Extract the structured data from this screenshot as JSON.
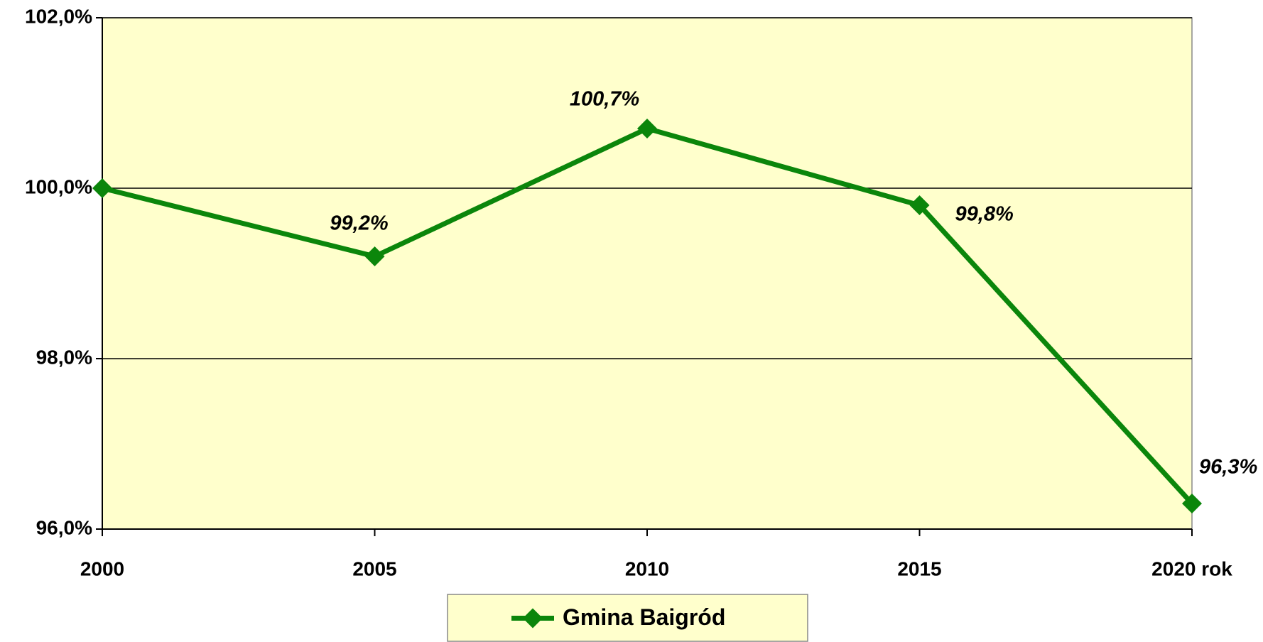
{
  "chart_data": {
    "type": "line",
    "categories": [
      "2000",
      "2005",
      "2010",
      "2015",
      "2020 rok"
    ],
    "series": [
      {
        "name": "Gmina Baigród",
        "color": "#0b860b",
        "values": [
          100.0,
          99.2,
          100.7,
          99.8,
          96.3
        ],
        "value_labels": [
          null,
          "99,2%",
          "100,7%",
          "99,8%",
          "96,3%"
        ]
      }
    ],
    "ylim": [
      96,
      102
    ],
    "yticks": [
      {
        "value": 96,
        "label": "96,0%"
      },
      {
        "value": 98,
        "label": "98,0%"
      },
      {
        "value": 100,
        "label": "100,0%"
      },
      {
        "value": 102,
        "label": "102,0%"
      }
    ],
    "grid": true,
    "legend": "bottom",
    "plot_background": "#ffffcc"
  }
}
